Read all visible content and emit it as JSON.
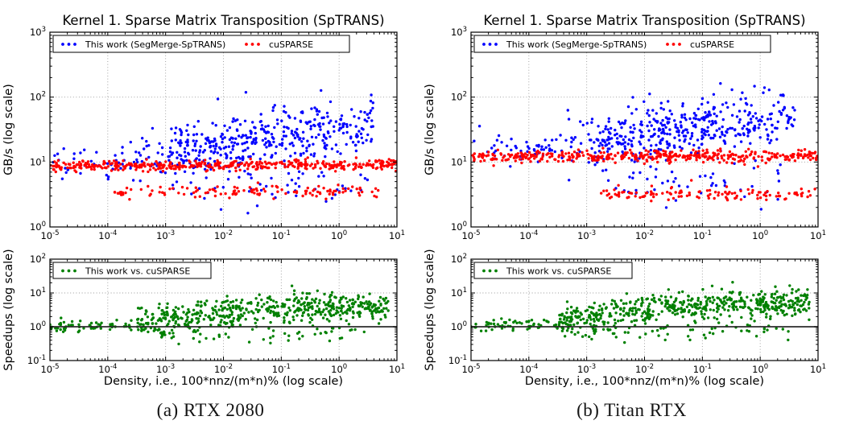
{
  "figure": {
    "columns": [
      {
        "caption": "(a) RTX 2080"
      },
      {
        "caption": "(b) Titan RTX"
      }
    ]
  },
  "colors": {
    "this_work": "#0000ff",
    "cusparse": "#ff0000",
    "speedup": "#008000",
    "grid": "#999999",
    "axis": "#000000",
    "reference_line": "#2b2b2b",
    "background": "#ffffff"
  },
  "chart_data": [
    {
      "id": "a-throughput",
      "type": "scatter",
      "gpu": "RTX 2080",
      "title": "Kernel 1. Sparse Matrix Transposition (SpTRANS)",
      "ylabel": "GB/s (log scale)",
      "xlabel": "",
      "x_scale": "log",
      "y_scale": "log",
      "xlim_exp": [
        -5,
        1
      ],
      "ylim_exp": [
        0,
        3
      ],
      "xtick_exps": [
        -5,
        -4,
        -3,
        -2,
        -1,
        0,
        1
      ],
      "ytick_exps": [
        0,
        1,
        2,
        3
      ],
      "grid": true,
      "legend": [
        {
          "label": "This work (SegMerge-SpTRANS)",
          "color": "#0000ff"
        },
        {
          "label": "cuSPARSE",
          "color": "#ff0000"
        }
      ],
      "series": [
        {
          "name": "This work (SegMerge-SpTRANS)",
          "color": "#0000ff",
          "seed": 101,
          "clusters": [
            {
              "n": 55,
              "x0": -5.0,
              "x1": -3.05,
              "y0": 0.98,
              "y1": 1.05,
              "sy": 0.12
            },
            {
              "n": 75,
              "x0": -3.6,
              "x1": -0.4,
              "y0": 1.12,
              "y1": 1.25,
              "sy": 0.27
            },
            {
              "n": 360,
              "x0": -2.95,
              "x1": 0.6,
              "y0": 1.15,
              "y1": 1.6,
              "sy": 0.21
            },
            {
              "n": 45,
              "x0": -2.7,
              "x1": 0.5,
              "y0": 0.6,
              "y1": 0.65,
              "sy": 0.17
            }
          ]
        },
        {
          "name": "cuSPARSE",
          "color": "#ff0000",
          "seed": 102,
          "clusters": [
            {
              "n": 430,
              "x0": -5.0,
              "x1": 1.0,
              "y0": 0.94,
              "y1": 0.96,
              "sy": 0.04
            },
            {
              "n": 125,
              "x0": -3.9,
              "x1": 0.7,
              "y0": 0.54,
              "y1": 0.55,
              "sy": 0.05
            }
          ]
        }
      ]
    },
    {
      "id": "a-speedup",
      "type": "scatter",
      "gpu": "RTX 2080",
      "title": "",
      "ylabel": "Speedups (log scale)",
      "xlabel": "Density, i.e., 100*nnz/(m*n)% (log scale)",
      "x_scale": "log",
      "y_scale": "log",
      "xlim_exp": [
        -5,
        1
      ],
      "ylim_exp": [
        -1,
        2
      ],
      "xtick_exps": [
        -5,
        -4,
        -3,
        -2,
        -1,
        0,
        1
      ],
      "ytick_exps": [
        -1,
        0,
        1,
        2
      ],
      "grid": true,
      "reference_line_y": 1,
      "legend": [
        {
          "label": "This work vs. cuSPARSE",
          "color": "#008000"
        }
      ],
      "series": [
        {
          "name": "This work vs. cuSPARSE",
          "color": "#008000",
          "seed": 301,
          "clusters": [
            {
              "n": 70,
              "x0": -5.0,
              "x1": -3.3,
              "y0": 0.0,
              "y1": 0.06,
              "sy": 0.09
            },
            {
              "n": 200,
              "x0": -3.5,
              "x1": -1.8,
              "y0": 0.12,
              "y1": 0.45,
              "sy": 0.22
            },
            {
              "n": 330,
              "x0": -1.8,
              "x1": 0.85,
              "y0": 0.52,
              "y1": 0.6,
              "sy": 0.21
            },
            {
              "n": 60,
              "x0": -3.1,
              "x1": 0.5,
              "y0": -0.22,
              "y1": -0.18,
              "sy": 0.14
            }
          ]
        }
      ]
    },
    {
      "id": "b-throughput",
      "type": "scatter",
      "gpu": "Titan RTX",
      "title": "Kernel 1. Sparse Matrix Transposition (SpTRANS)",
      "ylabel": "GB/s (log scale)",
      "xlabel": "",
      "x_scale": "log",
      "y_scale": "log",
      "xlim_exp": [
        -5,
        1
      ],
      "ylim_exp": [
        0,
        3
      ],
      "xtick_exps": [
        -5,
        -4,
        -3,
        -2,
        -1,
        0,
        1
      ],
      "ytick_exps": [
        0,
        1,
        2,
        3
      ],
      "grid": true,
      "legend": [
        {
          "label": "This work (SegMerge-SpTRANS)",
          "color": "#0000ff"
        },
        {
          "label": "cuSPARSE",
          "color": "#ff0000"
        }
      ],
      "series": [
        {
          "name": "This work (SegMerge-SpTRANS)",
          "color": "#0000ff",
          "seed": 201,
          "clusters": [
            {
              "n": 55,
              "x0": -5.0,
              "x1": -3.05,
              "y0": 1.15,
              "y1": 1.22,
              "sy": 0.1
            },
            {
              "n": 75,
              "x0": -3.6,
              "x1": -0.4,
              "y0": 1.32,
              "y1": 1.5,
              "sy": 0.27
            },
            {
              "n": 360,
              "x0": -2.95,
              "x1": 0.6,
              "y0": 1.3,
              "y1": 1.73,
              "sy": 0.21
            },
            {
              "n": 45,
              "x0": -2.7,
              "x1": 0.5,
              "y0": 0.6,
              "y1": 0.72,
              "sy": 0.18
            }
          ]
        },
        {
          "name": "cuSPARSE",
          "color": "#ff0000",
          "seed": 202,
          "clusters": [
            {
              "n": 430,
              "x0": -5.0,
              "x1": 1.0,
              "y0": 1.08,
              "y1": 1.1,
              "sy": 0.045
            },
            {
              "n": 125,
              "x0": -2.8,
              "x1": 1.0,
              "y0": 0.5,
              "y1": 0.52,
              "sy": 0.05
            }
          ]
        }
      ]
    },
    {
      "id": "b-speedup",
      "type": "scatter",
      "gpu": "Titan RTX",
      "title": "",
      "ylabel": "Speedups (log scale)",
      "xlabel": "Density, i.e., 100*nnz/(m*n)% (log scale)",
      "x_scale": "log",
      "y_scale": "log",
      "xlim_exp": [
        -5,
        1
      ],
      "ylim_exp": [
        -1,
        2
      ],
      "xtick_exps": [
        -5,
        -4,
        -3,
        -2,
        -1,
        0,
        1
      ],
      "ytick_exps": [
        -1,
        0,
        1,
        2
      ],
      "grid": true,
      "reference_line_y": 1,
      "legend": [
        {
          "label": "This work vs. cuSPARSE",
          "color": "#008000"
        }
      ],
      "series": [
        {
          "name": "This work vs. cuSPARSE",
          "color": "#008000",
          "seed": 401,
          "clusters": [
            {
              "n": 70,
              "x0": -5.0,
              "x1": -3.3,
              "y0": 0.04,
              "y1": 0.1,
              "sy": 0.09
            },
            {
              "n": 200,
              "x0": -3.5,
              "x1": -1.8,
              "y0": 0.18,
              "y1": 0.52,
              "sy": 0.22
            },
            {
              "n": 330,
              "x0": -1.8,
              "x1": 0.85,
              "y0": 0.6,
              "y1": 0.7,
              "sy": 0.2
            },
            {
              "n": 60,
              "x0": -3.1,
              "x1": 0.5,
              "y0": -0.18,
              "y1": -0.12,
              "sy": 0.14
            }
          ]
        }
      ]
    }
  ]
}
